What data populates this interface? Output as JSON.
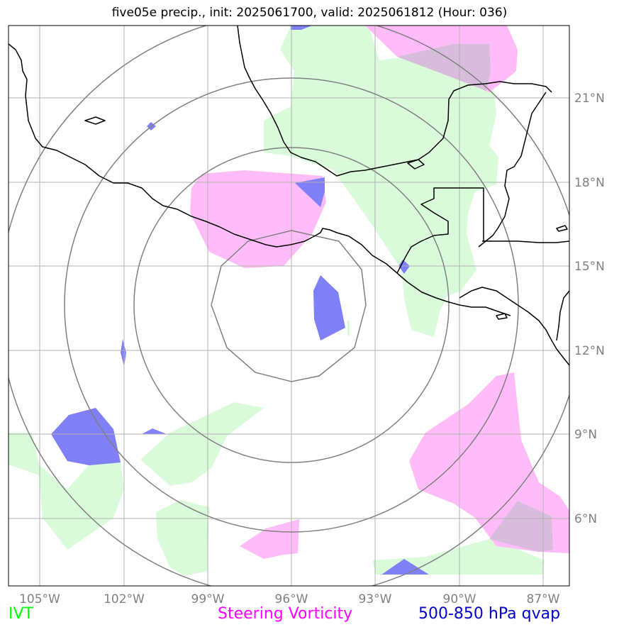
{
  "title": "five05e precip., init: 2025061700, valid: 2025061812 (Hour: 036)",
  "map": {
    "lon_ticks": [
      "105°W",
      "102°W",
      "99°W",
      "96°W",
      "93°W",
      "90°W",
      "87°W"
    ],
    "lat_ticks": [
      "21°N",
      "18°N",
      "15°N",
      "12°N",
      "9°N",
      "6°N"
    ],
    "range_rings": 4,
    "gridline_color": "#b0b0b0",
    "ring_color": "#808080",
    "coastline_color": "#000000"
  },
  "legend": {
    "ivt": {
      "label": "IVT",
      "color": "#00ff00"
    },
    "vorticity": {
      "label": "Steering Vorticity",
      "color": "#ff00ff"
    },
    "qvap": {
      "label": "500-850 hPa qvap",
      "color": "#0000cc"
    }
  },
  "overlay_colors": {
    "ivt_fill": "#d9fbd9",
    "vort_fill": "#ffbcf8",
    "qvap_fill": "#7f7ff8",
    "overlap_fill": "#d8bcdc"
  }
}
